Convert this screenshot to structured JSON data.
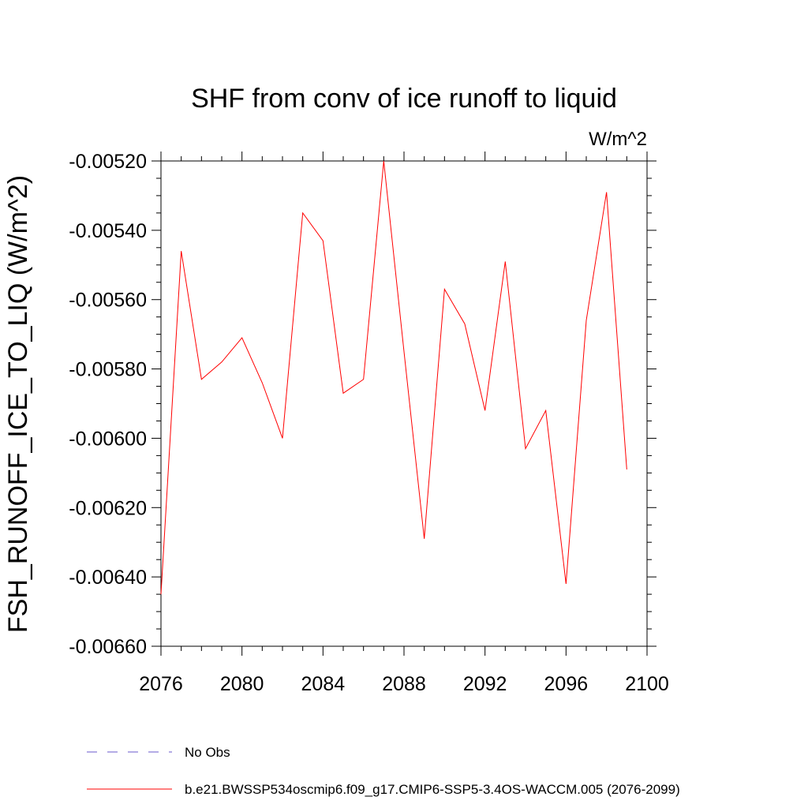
{
  "chart_data": {
    "type": "line",
    "title": "SHF from conv of ice runoff to liquid",
    "units_label": "W/m^2",
    "ylabel": "FSH_RUNOFF_ICE_TO_LIQ  (W/m^2)",
    "xlabel": "",
    "xlim": [
      2076,
      2100
    ],
    "ylim": [
      -0.0066,
      -0.0052
    ],
    "xticks": [
      "2076",
      "2080",
      "2084",
      "2088",
      "2092",
      "2096",
      "2100"
    ],
    "yticks": [
      "-0.00520",
      "-0.00540",
      "-0.00560",
      "-0.00580",
      "-0.00600",
      "-0.00620",
      "-0.00640",
      "-0.00660"
    ],
    "grid": false,
    "legend_placement": "bottom",
    "series": [
      {
        "name": "No Obs",
        "color": "#6a5acd",
        "dash": true,
        "x": [],
        "y": []
      },
      {
        "name": "b.e21.BWSSP534oscmip6.f09_g17.CMIP6-SSP5-3.4OS-WACCM.005 (2076-2099)",
        "color": "#ff0000",
        "dash": false,
        "x": [
          2076,
          2077,
          2078,
          2079,
          2080,
          2081,
          2082,
          2083,
          2084,
          2085,
          2086,
          2087,
          2088,
          2089,
          2090,
          2091,
          2092,
          2093,
          2094,
          2095,
          2096,
          2097,
          2098,
          2099
        ],
        "y": [
          -0.00645,
          -0.00546,
          -0.00583,
          -0.00578,
          -0.00571,
          -0.00584,
          -0.006,
          -0.00535,
          -0.00543,
          -0.00587,
          -0.00583,
          -0.0052,
          -0.00575,
          -0.00629,
          -0.00557,
          -0.00567,
          -0.00592,
          -0.00549,
          -0.00603,
          -0.00592,
          -0.00642,
          -0.00566,
          -0.00529,
          -0.00609
        ]
      }
    ]
  }
}
